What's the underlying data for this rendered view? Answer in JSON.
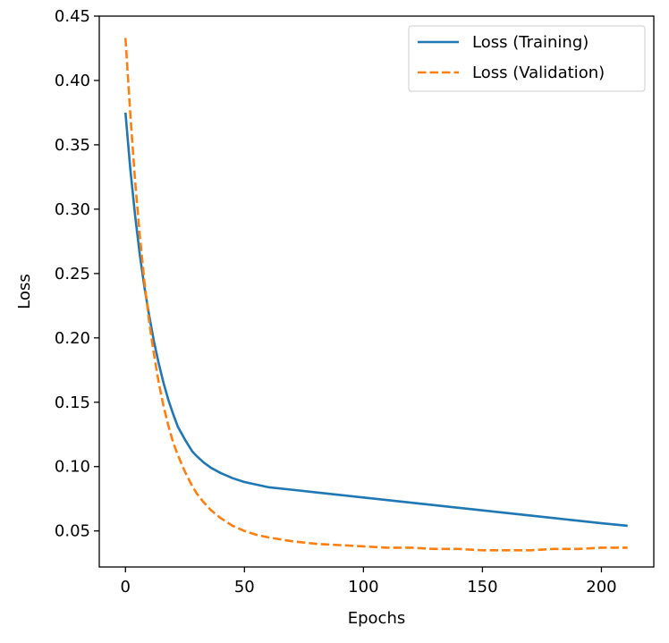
{
  "chart_data": {
    "type": "line",
    "title": "",
    "xlabel": "Epochs",
    "ylabel": "Loss",
    "xlim": [
      -11,
      222
    ],
    "ylim": [
      0.022,
      0.45
    ],
    "xticks": [
      0,
      50,
      100,
      150,
      200
    ],
    "xtick_labels": [
      "0",
      "50",
      "100",
      "150",
      "200"
    ],
    "yticks": [
      0.05,
      0.1,
      0.15,
      0.2,
      0.25,
      0.3,
      0.35,
      0.4,
      0.45
    ],
    "ytick_labels": [
      "0.05",
      "0.10",
      "0.15",
      "0.20",
      "0.25",
      "0.30",
      "0.35",
      "0.40",
      "0.45"
    ],
    "grid": false,
    "legend_position": "top-right",
    "series": [
      {
        "name": "Loss (Training)",
        "color": "#1f77b4",
        "style": "solid",
        "x": [
          0,
          2,
          4,
          6,
          8,
          10,
          12,
          14,
          16,
          18,
          20,
          22,
          25,
          28,
          30,
          33,
          36,
          40,
          45,
          50,
          55,
          60,
          70,
          80,
          90,
          100,
          110,
          120,
          130,
          140,
          150,
          160,
          170,
          180,
          190,
          200,
          211
        ],
        "y": [
          0.375,
          0.332,
          0.296,
          0.265,
          0.239,
          0.217,
          0.197,
          0.18,
          0.165,
          0.152,
          0.141,
          0.131,
          0.121,
          0.112,
          0.108,
          0.103,
          0.099,
          0.095,
          0.091,
          0.088,
          0.086,
          0.084,
          0.082,
          0.08,
          0.078,
          0.076,
          0.074,
          0.072,
          0.07,
          0.068,
          0.066,
          0.064,
          0.062,
          0.06,
          0.058,
          0.056,
          0.054
        ]
      },
      {
        "name": "Loss (Validation)",
        "color": "#ff7f0e",
        "style": "dashed",
        "x": [
          0,
          2,
          4,
          6,
          8,
          10,
          12,
          14,
          16,
          18,
          20,
          22,
          25,
          28,
          30,
          33,
          36,
          40,
          45,
          50,
          55,
          60,
          70,
          80,
          90,
          100,
          110,
          120,
          130,
          140,
          150,
          160,
          170,
          180,
          190,
          200,
          211
        ],
        "y": [
          0.433,
          0.375,
          0.323,
          0.28,
          0.243,
          0.212,
          0.187,
          0.165,
          0.147,
          0.132,
          0.119,
          0.109,
          0.096,
          0.085,
          0.079,
          0.072,
          0.066,
          0.06,
          0.054,
          0.05,
          0.047,
          0.045,
          0.042,
          0.04,
          0.039,
          0.038,
          0.037,
          0.037,
          0.036,
          0.036,
          0.035,
          0.035,
          0.035,
          0.036,
          0.036,
          0.037,
          0.037
        ]
      }
    ]
  }
}
